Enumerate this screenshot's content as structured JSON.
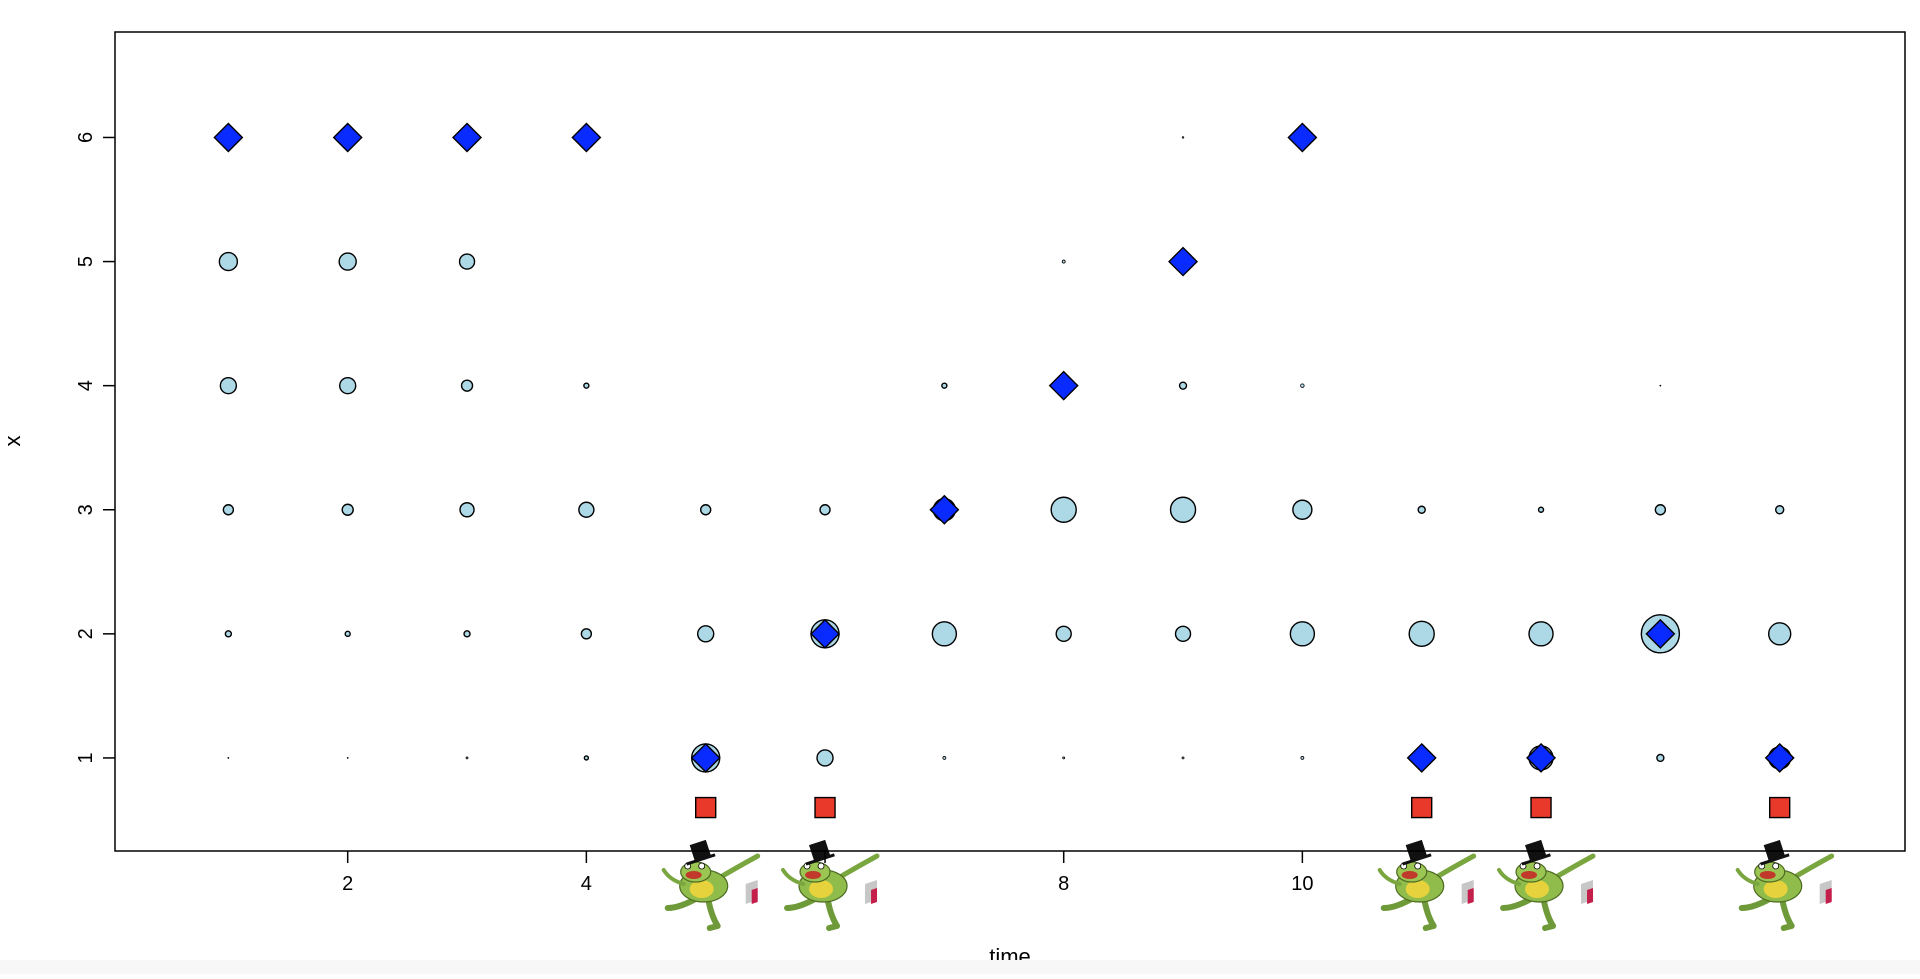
{
  "chart_data": {
    "type": "scatter",
    "title": "",
    "xlabel": "time",
    "ylabel": "x",
    "xlim": [
      0.05,
      15.05
    ],
    "ylim": [
      0.25,
      6.85
    ],
    "x_ticks": [
      2,
      4,
      6,
      8,
      10
    ],
    "x_tick_labels": [
      "2",
      "4",
      "",
      "8",
      "10"
    ],
    "y_ticks": [
      1,
      2,
      3,
      4,
      5,
      6
    ],
    "y_tick_labels": [
      "1",
      "2",
      "3",
      "4",
      "5",
      "6"
    ],
    "grid": false,
    "legend": "none",
    "colors": {
      "circle_fill": "#add8e6",
      "diamond_fill": "#0a2bff",
      "square_fill": "#e8392b",
      "outline": "#000000"
    },
    "series": [
      {
        "marker": "circle",
        "points": [
          {
            "x": 1,
            "y": 1,
            "r": 0.5
          },
          {
            "x": 1,
            "y": 2,
            "r": 3
          },
          {
            "x": 1,
            "y": 3,
            "r": 5
          },
          {
            "x": 1,
            "y": 4,
            "r": 8
          },
          {
            "x": 1,
            "y": 5,
            "r": 9
          },
          {
            "x": 2,
            "y": 1,
            "r": 0.5
          },
          {
            "x": 2,
            "y": 2,
            "r": 2.5
          },
          {
            "x": 2,
            "y": 3,
            "r": 5.5
          },
          {
            "x": 2,
            "y": 4,
            "r": 8
          },
          {
            "x": 2,
            "y": 5,
            "r": 8.5
          },
          {
            "x": 3,
            "y": 1,
            "r": 1
          },
          {
            "x": 3,
            "y": 2,
            "r": 3
          },
          {
            "x": 3,
            "y": 3,
            "r": 7
          },
          {
            "x": 3,
            "y": 4,
            "r": 5.5
          },
          {
            "x": 3,
            "y": 5,
            "r": 7.5
          },
          {
            "x": 4,
            "y": 1,
            "r": 2
          },
          {
            "x": 4,
            "y": 2,
            "r": 5
          },
          {
            "x": 4,
            "y": 3,
            "r": 7.5
          },
          {
            "x": 4,
            "y": 4,
            "r": 2.5
          },
          {
            "x": 5,
            "y": 1,
            "r": 14
          },
          {
            "x": 5,
            "y": 2,
            "r": 8
          },
          {
            "x": 5,
            "y": 3,
            "r": 5
          },
          {
            "x": 6,
            "y": 1,
            "r": 8
          },
          {
            "x": 6,
            "y": 2,
            "r": 14
          },
          {
            "x": 6,
            "y": 3,
            "r": 5
          },
          {
            "x": 7,
            "y": 1,
            "r": 1.5
          },
          {
            "x": 7,
            "y": 2,
            "r": 12
          },
          {
            "x": 7,
            "y": 3,
            "r": 11
          },
          {
            "x": 7,
            "y": 4,
            "r": 2.5
          },
          {
            "x": 8,
            "y": 1,
            "r": 1
          },
          {
            "x": 8,
            "y": 2,
            "r": 7.5
          },
          {
            "x": 8,
            "y": 3,
            "r": 12.5
          },
          {
            "x": 8,
            "y": 5,
            "r": 1.5
          },
          {
            "x": 9,
            "y": 1,
            "r": 1
          },
          {
            "x": 9,
            "y": 2,
            "r": 7.5
          },
          {
            "x": 9,
            "y": 3,
            "r": 12.5
          },
          {
            "x": 9,
            "y": 4,
            "r": 3.5
          },
          {
            "x": 9,
            "y": 6,
            "r": 0.8
          },
          {
            "x": 10,
            "y": 1,
            "r": 1.5
          },
          {
            "x": 10,
            "y": 2,
            "r": 12
          },
          {
            "x": 10,
            "y": 3,
            "r": 9.5
          },
          {
            "x": 10,
            "y": 4,
            "r": 1.8
          },
          {
            "x": 11,
            "y": 1,
            "r": 9
          },
          {
            "x": 11,
            "y": 2,
            "r": 12.5
          },
          {
            "x": 11,
            "y": 3,
            "r": 3.5
          },
          {
            "x": 12,
            "y": 1,
            "r": 12
          },
          {
            "x": 12,
            "y": 2,
            "r": 12
          },
          {
            "x": 12,
            "y": 3,
            "r": 2.5
          },
          {
            "x": 13,
            "y": 1,
            "r": 3.5
          },
          {
            "x": 13,
            "y": 2,
            "r": 19
          },
          {
            "x": 13,
            "y": 3,
            "r": 5
          },
          {
            "x": 13,
            "y": 4,
            "r": 0.5
          },
          {
            "x": 14,
            "y": 1,
            "r": 11
          },
          {
            "x": 14,
            "y": 2,
            "r": 11
          },
          {
            "x": 14,
            "y": 3,
            "r": 4
          }
        ]
      },
      {
        "marker": "diamond",
        "points": [
          {
            "x": 1,
            "y": 6
          },
          {
            "x": 2,
            "y": 6
          },
          {
            "x": 3,
            "y": 6
          },
          {
            "x": 4,
            "y": 6
          },
          {
            "x": 5,
            "y": 1
          },
          {
            "x": 6,
            "y": 2
          },
          {
            "x": 7,
            "y": 3
          },
          {
            "x": 8,
            "y": 4
          },
          {
            "x": 9,
            "y": 5
          },
          {
            "x": 10,
            "y": 6
          },
          {
            "x": 11,
            "y": 1
          },
          {
            "x": 12,
            "y": 1
          },
          {
            "x": 13,
            "y": 2
          },
          {
            "x": 14,
            "y": 1
          }
        ]
      },
      {
        "marker": "square",
        "points": [
          {
            "x": 5,
            "y": 0.6
          },
          {
            "x": 6,
            "y": 0.6
          },
          {
            "x": 11,
            "y": 0.6
          },
          {
            "x": 12,
            "y": 0.6
          },
          {
            "x": 14,
            "y": 0.6
          }
        ]
      }
    ],
    "frog_pictures_at_x": [
      5,
      6,
      11,
      12,
      14
    ]
  }
}
